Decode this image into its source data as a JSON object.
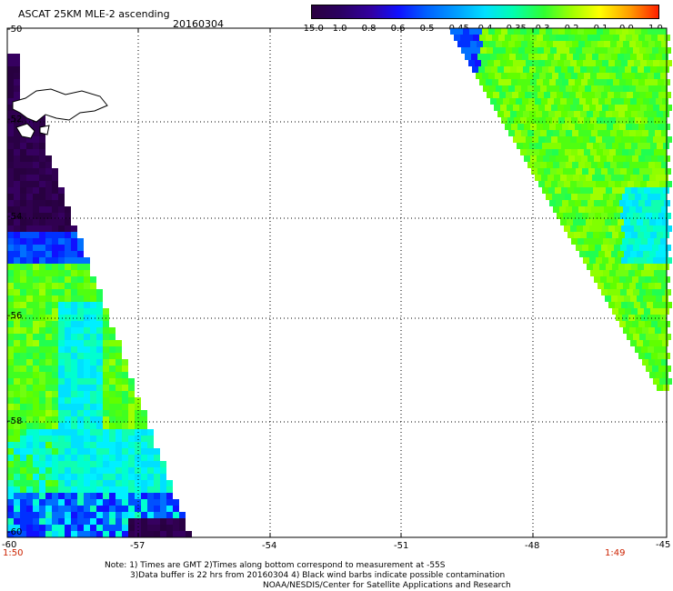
{
  "header": {
    "title": "ASCAT 25KM MLE-2 ascending",
    "date": "20160304"
  },
  "colorbar": {
    "labels": [
      "-15.0",
      "-1.0",
      "-0.8",
      "-0.6",
      "-0.5",
      "-0.45",
      "-0.4",
      "-0.35",
      "-0.3",
      "-0.2",
      "-0.1",
      "0.0",
      "1.0"
    ],
    "colors": [
      "#2a0040",
      "#2a0060",
      "#3200a0",
      "#1010ff",
      "#0060ff",
      "#00a0ff",
      "#00e0ff",
      "#00ffb0",
      "#30ff30",
      "#a0ff00",
      "#ffff00",
      "#ff9900",
      "#ff2000"
    ]
  },
  "axes": {
    "lat_labels": [
      "-50",
      "-52",
      "-54",
      "-56",
      "-58",
      "-60"
    ],
    "lon_labels": [
      "-60",
      "-57",
      "-54",
      "-51",
      "-48",
      "-45"
    ],
    "time_left": "1:50",
    "time_right": "1:49"
  },
  "notes": {
    "line1": "Note: 1) Times are GMT 2)Times along bottom correspond to measurement at -55S",
    "line2": "3)Data buffer is 22 hrs from 20160304 4) Black wind barbs indicate possible contamination",
    "line3": "NOAA/NESDIS/Center for Satellite Applications and Research"
  }
}
